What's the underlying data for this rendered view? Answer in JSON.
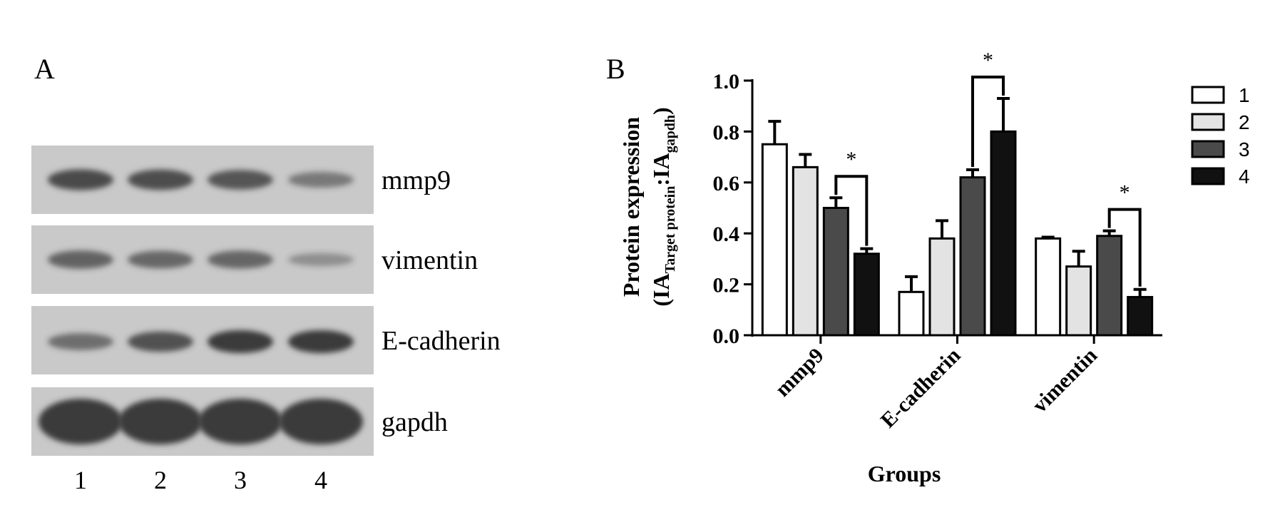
{
  "figure": {
    "panel_a_letter": "A",
    "panel_b_letter": "B"
  },
  "western_blot": {
    "bands": [
      "mmp9",
      "vimentin",
      "E-cadherin",
      "gapdh"
    ],
    "lanes": [
      "1",
      "2",
      "3",
      "4"
    ],
    "band_intensity": [
      [
        0.85,
        0.82,
        0.75,
        0.45
      ],
      [
        0.65,
        0.6,
        0.62,
        0.25
      ],
      [
        0.55,
        0.8,
        1.0,
        1.0
      ],
      [
        1.0,
        1.0,
        1.0,
        1.0
      ]
    ],
    "colors": {
      "membrane": "#c9c9c9",
      "band": "#3a3a3a"
    }
  },
  "chart_data": {
    "type": "bar",
    "categories": [
      "mmp9",
      "E-cadherin",
      "vimentin"
    ],
    "series": [
      {
        "name": "1",
        "values": [
          0.75,
          0.17,
          0.38
        ],
        "errors": [
          0.09,
          0.06,
          0.005
        ],
        "color": "#ffffff"
      },
      {
        "name": "2",
        "values": [
          0.66,
          0.38,
          0.27
        ],
        "errors": [
          0.05,
          0.07,
          0.06
        ],
        "color": "#e3e3e3"
      },
      {
        "name": "3",
        "values": [
          0.5,
          0.62,
          0.39
        ],
        "errors": [
          0.04,
          0.03,
          0.02
        ],
        "color": "#4a4a4a"
      },
      {
        "name": "4",
        "values": [
          0.32,
          0.8,
          0.15
        ],
        "errors": [
          0.02,
          0.13,
          0.03
        ],
        "color": "#111111"
      }
    ],
    "ylim": [
      0.0,
      1.0
    ],
    "yticks": [
      "0.0",
      "0.2",
      "0.4",
      "0.6",
      "0.8",
      "1.0"
    ],
    "ylabel_line1": "Protein expression",
    "ylabel_line2": {
      "open": "(IA",
      "sub1": "Target protein",
      "colon": ":IA",
      "sub2": "gapdh",
      "close": ")"
    },
    "xlabel": "Groups",
    "legend_position": "right",
    "significance": [
      {
        "category": "mmp9",
        "from_series": 2,
        "to_series": 3,
        "label": "*"
      },
      {
        "category": "E-cadherin",
        "from_series": 2,
        "to_series": 3,
        "label": "*"
      },
      {
        "category": "vimentin",
        "from_series": 2,
        "to_series": 3,
        "label": "*"
      }
    ]
  }
}
